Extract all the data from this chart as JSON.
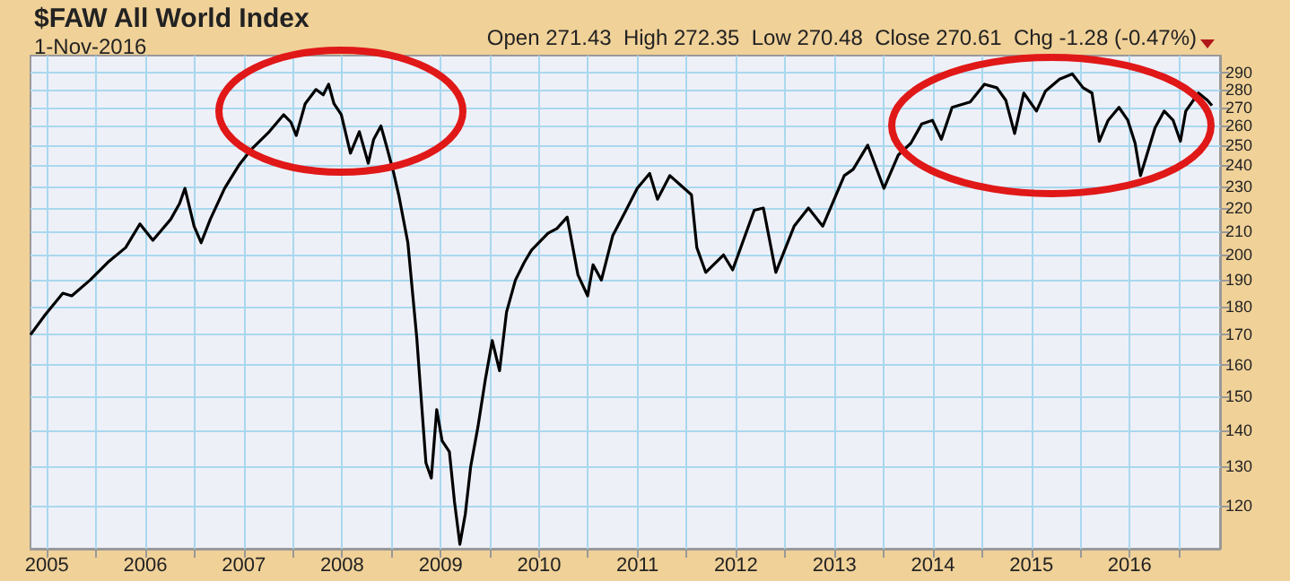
{
  "chart_data": {
    "type": "line",
    "title": "$FAW All World Index",
    "subtitle": "1-Nov-2016",
    "annotations": [
      "Open 271.43  High 272.35  Low 270.48  Close 270.61  Chg -1.28 (-0.47%)"
    ],
    "log": "y",
    "grid": true,
    "xlim": [
      "2004-11-01",
      "2016-12-01"
    ],
    "xticks": [
      {
        "value": "2005-01-01",
        "label": "2005"
      },
      {
        "value": "2005-07-01",
        "label": null
      },
      {
        "value": "2006-01-01",
        "label": "2006"
      },
      {
        "value": "2006-07-01",
        "label": null
      },
      {
        "value": "2007-01-01",
        "label": "2007"
      },
      {
        "value": "2007-07-01",
        "label": null
      },
      {
        "value": "2008-01-01",
        "label": "2008"
      },
      {
        "value": "2008-07-01",
        "label": null
      },
      {
        "value": "2009-01-01",
        "label": "2009"
      },
      {
        "value": "2009-07-01",
        "label": null
      },
      {
        "value": "2010-01-01",
        "label": "2010"
      },
      {
        "value": "2010-07-01",
        "label": null
      },
      {
        "value": "2011-01-01",
        "label": "2011"
      },
      {
        "value": "2011-07-01",
        "label": null
      },
      {
        "value": "2012-01-01",
        "label": "2012"
      },
      {
        "value": "2012-07-01",
        "label": null
      },
      {
        "value": "2013-01-01",
        "label": "2013"
      },
      {
        "value": "2013-07-01",
        "label": null
      },
      {
        "value": "2014-01-01",
        "label": "2014"
      },
      {
        "value": "2014-07-01",
        "label": null
      },
      {
        "value": "2015-01-01",
        "label": "2015"
      },
      {
        "value": "2015-07-01",
        "label": null
      },
      {
        "value": "2016-01-01",
        "label": "2016"
      },
      {
        "value": "2016-07-01",
        "label": null
      }
    ],
    "ylim": [
      110,
      300
    ],
    "yticks": [
      120,
      130,
      140,
      150,
      160,
      170,
      180,
      190,
      200,
      210,
      220,
      230,
      240,
      250,
      260,
      270,
      280,
      290
    ],
    "series": [
      {
        "color": "#000000",
        "x": [
          "2004-11-01",
          "2004-12-25",
          "2005-03-01",
          "2005-04-03",
          "2005-06-10",
          "2005-08-15",
          "2005-10-20",
          "2005-12-12",
          "2006-01-29",
          "2006-04-05",
          "2006-05-08",
          "2006-05-28",
          "2006-07-01",
          "2006-07-27",
          "2006-08-30",
          "2006-10-22",
          "2006-12-14",
          "2007-01-30",
          "2007-04-06",
          "2007-05-29",
          "2007-06-25",
          "2007-07-15",
          "2007-08-17",
          "2007-09-26",
          "2007-10-23",
          "2007-11-12",
          "2007-12-02",
          "2007-12-29",
          "2008-02-01",
          "2008-03-05",
          "2008-04-07",
          "2008-04-27",
          "2008-05-24",
          "2008-06-13",
          "2008-07-09",
          "2008-07-29",
          "2008-09-01",
          "2008-10-04",
          "2008-10-18",
          "2008-11-07",
          "2008-11-27",
          "2008-12-17",
          "2009-01-06",
          "2009-02-02",
          "2009-02-21",
          "2009-03-13",
          "2009-04-02",
          "2009-04-22",
          "2009-05-19",
          "2009-06-15",
          "2009-07-11",
          "2009-08-07",
          "2009-09-02",
          "2009-10-05",
          "2009-11-07",
          "2009-12-04",
          "2010-02-03",
          "2010-03-08",
          "2010-04-15",
          "2010-05-25",
          "2010-06-30",
          "2010-07-20",
          "2010-08-20",
          "2010-10-01",
          "2010-11-15",
          "2010-12-31",
          "2011-02-15",
          "2011-03-16",
          "2011-05-01",
          "2011-07-20",
          "2011-08-09",
          "2011-09-11",
          "2011-11-16",
          "2011-12-20",
          "2012-03-09",
          "2012-04-12",
          "2012-05-28",
          "2012-08-04",
          "2012-09-26",
          "2012-11-18",
          "2013-02-06",
          "2013-03-11",
          "2013-05-04",
          "2013-07-03",
          "2013-08-25",
          "2013-10-11",
          "2013-11-20",
          "2013-12-30",
          "2014-02-01",
          "2014-03-13",
          "2014-05-19",
          "2014-07-11",
          "2014-08-26",
          "2014-09-28",
          "2014-10-31",
          "2014-12-04",
          "2015-01-20",
          "2015-02-22",
          "2015-04-16",
          "2015-06-02",
          "2015-07-12",
          "2015-08-14",
          "2015-09-10",
          "2015-10-13",
          "2015-11-22",
          "2015-12-25",
          "2016-01-21",
          "2016-02-10",
          "2016-03-02",
          "2016-04-04",
          "2016-05-08",
          "2016-06-10",
          "2016-07-07",
          "2016-07-27",
          "2016-09-12",
          "2016-10-15",
          "2016-11-01"
        ],
        "values": [
          170,
          177,
          185,
          184,
          190,
          197,
          203,
          213,
          206,
          215,
          222,
          229,
          212,
          205,
          215,
          229,
          240,
          248,
          257,
          266,
          262,
          255,
          272,
          280,
          277,
          283,
          272,
          266,
          246,
          257,
          241,
          253,
          260,
          250,
          237,
          226,
          205,
          169,
          152,
          131,
          127,
          146,
          137,
          134,
          121,
          111,
          118,
          130,
          141,
          155,
          168,
          158,
          178,
          190,
          197,
          202,
          209,
          211,
          216,
          192,
          184,
          196,
          190,
          208,
          218,
          229,
          236,
          224,
          235,
          226,
          203,
          193,
          200,
          194,
          219,
          220,
          193,
          212,
          220,
          212,
          235,
          238,
          250,
          229,
          245,
          251,
          261,
          263,
          253,
          270,
          273,
          283,
          281,
          274,
          256,
          278,
          268,
          279,
          286,
          289,
          281,
          278,
          252,
          263,
          270,
          263,
          251,
          235,
          244,
          259,
          268,
          263,
          252,
          268,
          278,
          274,
          271
        ]
      }
    ]
  }
}
